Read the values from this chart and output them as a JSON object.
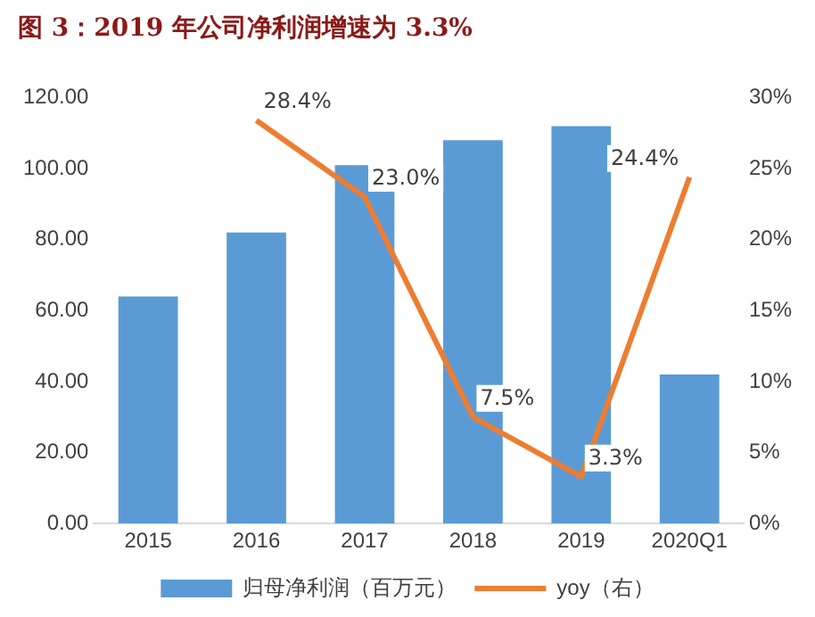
{
  "chart_data": {
    "type": "bar",
    "title": "图 3：2019 年公司净利润增速为 3.3%",
    "categories": [
      "2015",
      "2016",
      "2017",
      "2018",
      "2019",
      "2020Q1"
    ],
    "series": [
      {
        "name": "归母净利润（百万元）",
        "color": "#5b9bd5",
        "values": [
          64,
          82,
          101,
          108,
          112,
          42
        ]
      },
      {
        "name": "yoy（右）",
        "type": "line",
        "axis": "y2",
        "color": "#ed7d31",
        "values": [
          null,
          28.4,
          23.0,
          7.5,
          3.3,
          24.4
        ],
        "value_labels": [
          null,
          "28.4%",
          "23.0%",
          "7.5%",
          "3.3%",
          "24.4%"
        ]
      }
    ],
    "ylim": [
      0,
      120
    ],
    "yticks": [
      {
        "value": 0,
        "label": "0.00"
      },
      {
        "value": 20,
        "label": "20.00"
      },
      {
        "value": 40,
        "label": "40.00"
      },
      {
        "value": 60,
        "label": "60.00"
      },
      {
        "value": 80,
        "label": "80.00"
      },
      {
        "value": 100,
        "label": "100.00"
      },
      {
        "value": 120,
        "label": "120.00"
      }
    ],
    "y2lim": [
      0,
      30
    ],
    "y2ticks": [
      {
        "value": 0,
        "label": "0%"
      },
      {
        "value": 5,
        "label": "5%"
      },
      {
        "value": 10,
        "label": "10%"
      },
      {
        "value": 15,
        "label": "15%"
      },
      {
        "value": 20,
        "label": "20%"
      },
      {
        "value": 25,
        "label": "25%"
      },
      {
        "value": 30,
        "label": "30%"
      }
    ],
    "grid": false,
    "legend": "bottom",
    "marker": "none"
  }
}
